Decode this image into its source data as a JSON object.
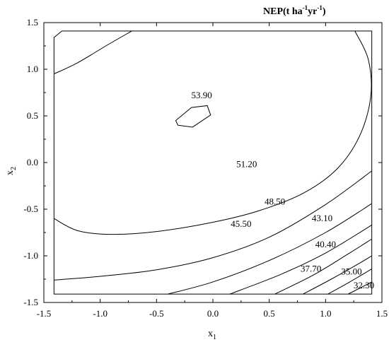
{
  "chart_data": {
    "type": "contour",
    "title": {
      "main": "NEP(t ha",
      "sup1": "-1",
      "mid": "yr",
      "sup2": "-1",
      "end": ")"
    },
    "xlabel": {
      "base": "x",
      "sub": "1"
    },
    "ylabel": {
      "base": "x",
      "sub": "2"
    },
    "xlim": [
      -1.5,
      1.5
    ],
    "ylim": [
      -1.5,
      1.5
    ],
    "xticks": [
      "-1.5",
      "-1.0",
      "-0.5",
      "0.0",
      "0.5",
      "1.0",
      "1.5"
    ],
    "yticks": [
      "1.5",
      "1.0",
      "0.5",
      "0.0",
      "-0.5",
      "-1.0",
      "-1.5"
    ],
    "region": [
      [
        -1.41,
        1.41
      ],
      [
        -1.41,
        1.41
      ]
    ],
    "levels": [
      {
        "label": "53.90",
        "label_at": [
          -0.1,
          0.69
        ],
        "points": [
          [
            -0.31,
            0.4
          ],
          [
            -0.18,
            0.38
          ],
          [
            -0.02,
            0.51
          ],
          [
            -0.05,
            0.61
          ],
          [
            -0.19,
            0.59
          ],
          [
            -0.33,
            0.45
          ],
          [
            -0.31,
            0.4
          ]
        ]
      },
      {
        "label": "51.20",
        "label_at": [
          0.3,
          -0.05
        ],
        "points": [
          [
            -1.41,
            -0.6
          ],
          [
            -1.2,
            -0.73
          ],
          [
            -0.9,
            -0.77
          ],
          [
            -0.5,
            -0.74
          ],
          [
            0.0,
            -0.64
          ],
          [
            0.4,
            -0.52
          ],
          [
            0.8,
            -0.33
          ],
          [
            1.1,
            -0.07
          ],
          [
            1.3,
            0.28
          ],
          [
            1.4,
            0.7
          ],
          [
            1.38,
            1.1
          ],
          [
            1.26,
            1.41
          ]
        ]
      },
      {
        "label": "48.50",
        "label_at": [
          0.55,
          -0.45
        ],
        "points": [
          [
            -1.41,
            -1.26
          ],
          [
            -1.0,
            -1.22
          ],
          [
            -0.5,
            -1.15
          ],
          [
            0.0,
            -1.02
          ],
          [
            0.5,
            -0.8
          ],
          [
            1.0,
            -0.45
          ],
          [
            1.41,
            -0.09
          ]
        ]
      },
      {
        "label": "45.50",
        "label_at": [
          0.25,
          -0.69
        ],
        "points": [
          [
            -0.4,
            -1.41
          ],
          [
            0.0,
            -1.28
          ],
          [
            0.5,
            -1.05
          ],
          [
            1.0,
            -0.75
          ],
          [
            1.41,
            -0.44
          ]
        ]
      },
      {
        "label": "43.10",
        "label_at": [
          0.97,
          -0.63
        ],
        "points": [
          [
            0.15,
            -1.41
          ],
          [
            0.6,
            -1.2
          ],
          [
            1.0,
            -0.97
          ],
          [
            1.41,
            -0.67
          ]
        ]
      },
      {
        "label": "40.40",
        "label_at": [
          1.0,
          -0.91
        ],
        "points": [
          [
            0.55,
            -1.41
          ],
          [
            0.9,
            -1.2
          ],
          [
            1.2,
            -0.98
          ],
          [
            1.41,
            -0.82
          ]
        ]
      },
      {
        "label": "37.70",
        "label_at": [
          0.87,
          -1.17
        ],
        "points": [
          [
            0.8,
            -1.41
          ],
          [
            1.05,
            -1.25
          ],
          [
            1.3,
            -1.08
          ],
          [
            1.41,
            -1.0
          ]
        ]
      },
      {
        "label": "35.00",
        "label_at": [
          1.23,
          -1.2
        ],
        "points": [
          [
            1.02,
            -1.41
          ],
          [
            1.2,
            -1.29
          ],
          [
            1.41,
            -1.14
          ]
        ]
      },
      {
        "label": "32.30",
        "label_at": [
          1.34,
          -1.35
        ],
        "points": [
          [
            1.2,
            -1.41
          ],
          [
            1.41,
            -1.28
          ]
        ]
      },
      {
        "label": "",
        "label_at": null,
        "points": [
          [
            -1.41,
            0.95
          ],
          [
            -1.2,
            1.07
          ],
          [
            -0.95,
            1.25
          ],
          [
            -0.72,
            1.41
          ]
        ]
      }
    ]
  }
}
